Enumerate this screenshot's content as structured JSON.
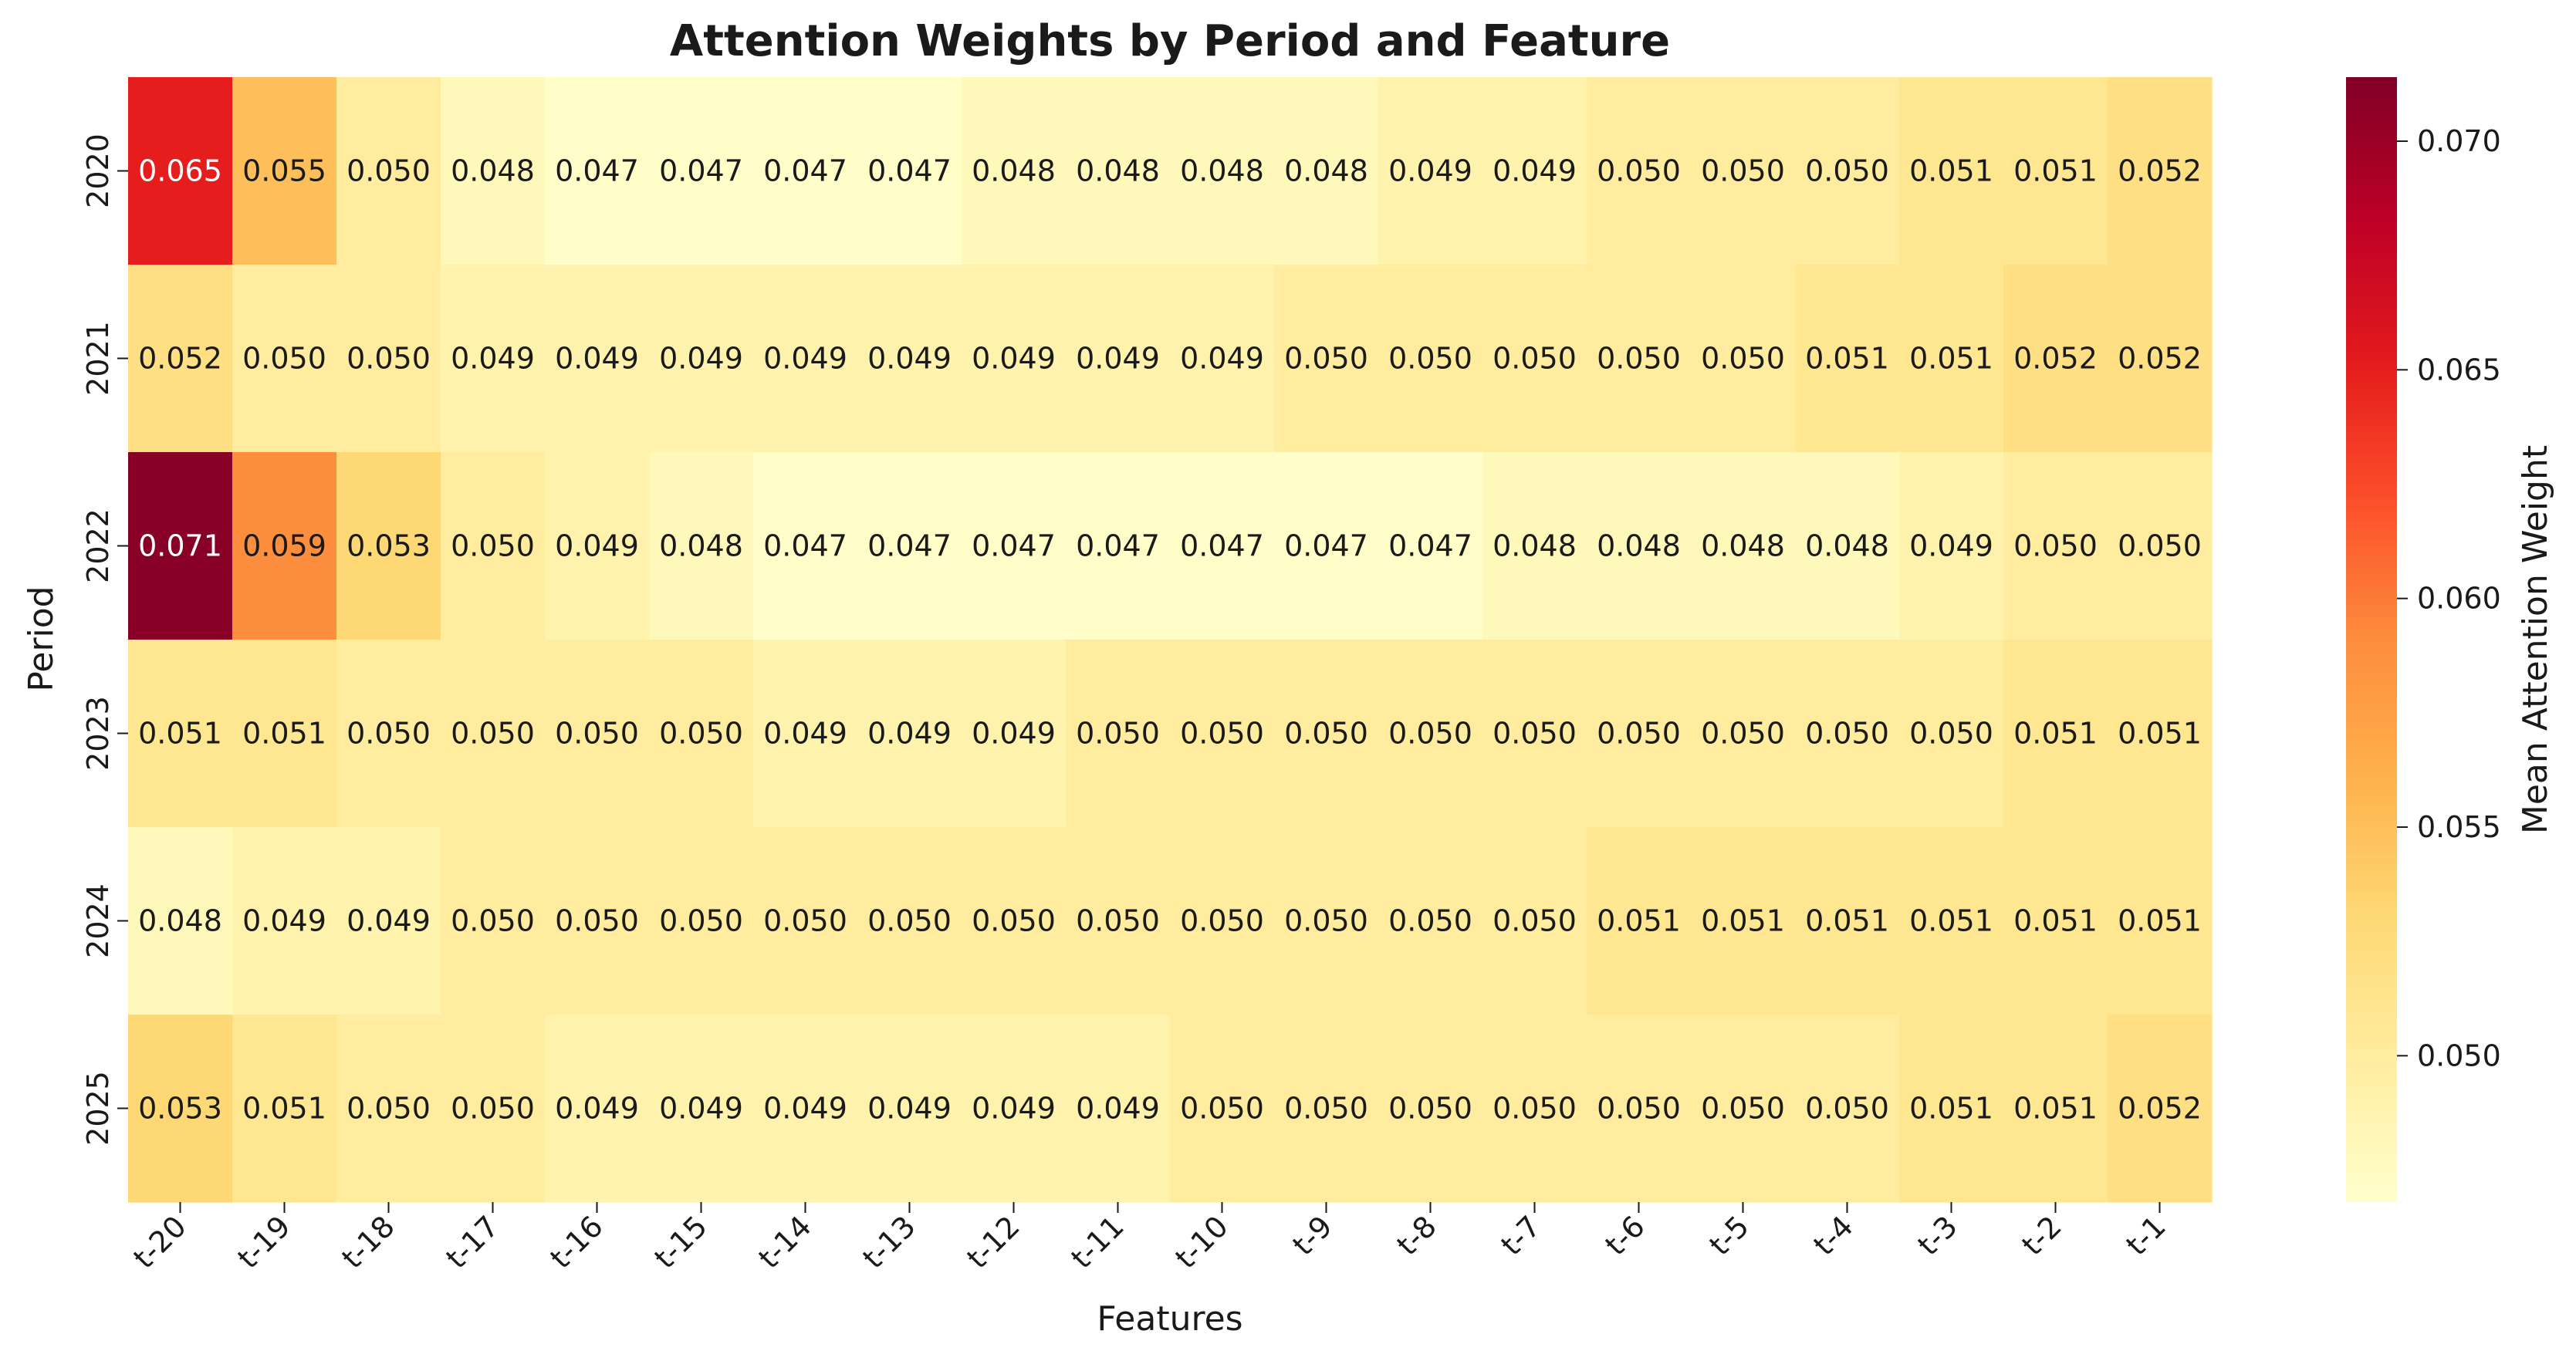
{
  "chart_data": {
    "type": "heatmap",
    "title": "Attention Weights by Period and Feature",
    "xlabel": "Features",
    "ylabel": "Period",
    "colorbar_label": "Mean Attention Weight",
    "colormap": "YlOrRd",
    "color_stops": [
      "#ffffcc",
      "#ffeda0",
      "#fed976",
      "#feb24c",
      "#fd8d3c",
      "#fc4e2a",
      "#e31a1c",
      "#bd0026",
      "#800026"
    ],
    "vmin": 0.0468,
    "vmax": 0.0714,
    "colorbar_ticks": [
      "0.050",
      "0.055",
      "0.060",
      "0.065",
      "0.070"
    ],
    "x_categories": [
      "t-20",
      "t-19",
      "t-18",
      "t-17",
      "t-16",
      "t-15",
      "t-14",
      "t-13",
      "t-12",
      "t-11",
      "t-10",
      "t-9",
      "t-8",
      "t-7",
      "t-6",
      "t-5",
      "t-4",
      "t-3",
      "t-2",
      "t-1"
    ],
    "y_categories": [
      "2020",
      "2021",
      "2022",
      "2023",
      "2024",
      "2025"
    ],
    "values": [
      [
        0.065,
        0.055,
        0.05,
        0.048,
        0.047,
        0.047,
        0.047,
        0.047,
        0.048,
        0.048,
        0.048,
        0.048,
        0.049,
        0.049,
        0.05,
        0.05,
        0.05,
        0.051,
        0.051,
        0.052
      ],
      [
        0.052,
        0.05,
        0.05,
        0.049,
        0.049,
        0.049,
        0.049,
        0.049,
        0.049,
        0.049,
        0.049,
        0.05,
        0.05,
        0.05,
        0.05,
        0.05,
        0.051,
        0.051,
        0.052,
        0.052
      ],
      [
        0.071,
        0.059,
        0.053,
        0.05,
        0.049,
        0.048,
        0.047,
        0.047,
        0.047,
        0.047,
        0.047,
        0.047,
        0.047,
        0.048,
        0.048,
        0.048,
        0.048,
        0.049,
        0.05,
        0.05
      ],
      [
        0.051,
        0.051,
        0.05,
        0.05,
        0.05,
        0.05,
        0.049,
        0.049,
        0.049,
        0.05,
        0.05,
        0.05,
        0.05,
        0.05,
        0.05,
        0.05,
        0.05,
        0.05,
        0.051,
        0.051
      ],
      [
        0.048,
        0.049,
        0.049,
        0.05,
        0.05,
        0.05,
        0.05,
        0.05,
        0.05,
        0.05,
        0.05,
        0.05,
        0.05,
        0.05,
        0.051,
        0.051,
        0.051,
        0.051,
        0.051,
        0.051
      ],
      [
        0.053,
        0.051,
        0.05,
        0.05,
        0.049,
        0.049,
        0.049,
        0.049,
        0.049,
        0.049,
        0.05,
        0.05,
        0.05,
        0.05,
        0.05,
        0.05,
        0.05,
        0.051,
        0.051,
        0.052
      ]
    ]
  }
}
